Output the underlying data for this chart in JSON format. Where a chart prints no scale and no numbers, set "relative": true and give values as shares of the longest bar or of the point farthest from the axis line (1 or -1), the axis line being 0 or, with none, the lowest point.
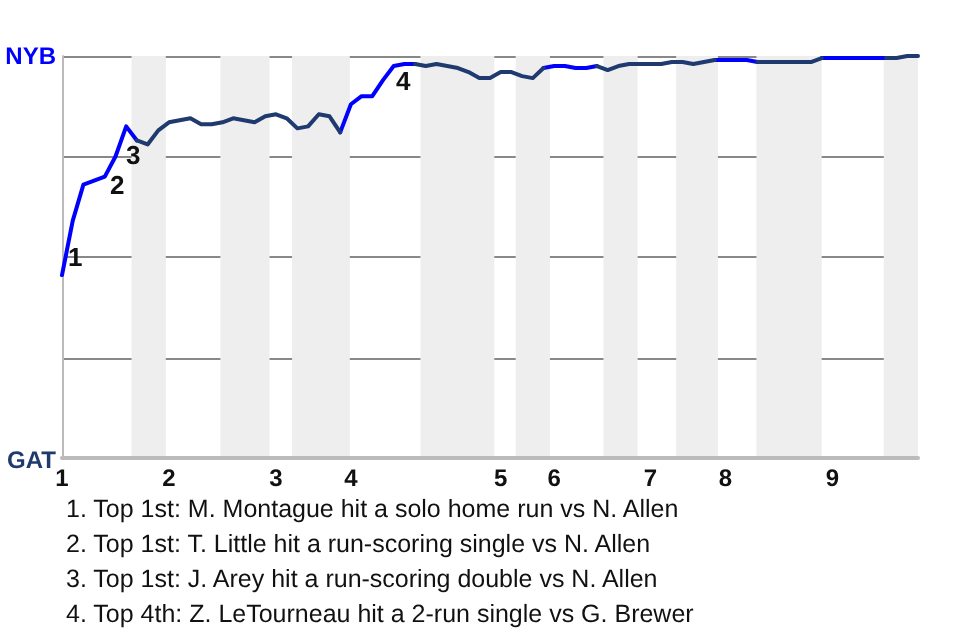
{
  "chart_data": {
    "type": "line",
    "relative": true,
    "categories": [
      "1",
      null,
      null,
      null,
      null,
      null,
      null,
      null,
      null,
      null,
      "2",
      null,
      null,
      null,
      null,
      null,
      null,
      null,
      null,
      null,
      "3",
      null,
      null,
      null,
      null,
      null,
      null,
      "4",
      null,
      null,
      null,
      null,
      null,
      null,
      null,
      null,
      null,
      null,
      null,
      null,
      null,
      "5",
      null,
      null,
      null,
      null,
      "6",
      null,
      null,
      null,
      null,
      null,
      null,
      null,
      null,
      "7",
      null,
      null,
      null,
      null,
      null,
      null,
      "8",
      null,
      null,
      null,
      null,
      null,
      null,
      null,
      null,
      null,
      "9",
      null,
      null,
      null,
      null,
      null,
      null,
      null,
      null
    ],
    "series": [
      {
        "color": "#0000ff",
        "values": [
          0.455,
          0.59,
          0.68,
          0.69,
          0.7,
          0.75,
          0.825,
          0.79,
          null,
          null,
          null,
          null,
          null,
          null,
          null,
          null,
          null,
          null,
          null,
          null,
          null,
          null,
          null,
          null,
          null,
          null,
          0.81,
          0.88,
          0.9,
          0.9,
          0.94,
          0.975,
          0.98,
          0.98,
          null,
          null,
          null,
          null,
          null,
          null,
          null,
          null,
          null,
          null,
          null,
          0.97,
          0.975,
          0.975,
          0.97,
          0.97,
          0.975,
          null,
          null,
          null,
          null,
          null,
          null,
          null,
          null,
          null,
          null,
          0.99,
          0.99,
          0.99,
          0.99,
          0.985,
          null,
          null,
          null,
          null,
          null,
          0.995,
          0.995,
          0.995,
          0.995,
          0.995,
          0.995,
          0.995,
          null,
          null,
          null
        ]
      },
      {
        "color": "#1f3a6e",
        "values": [
          null,
          null,
          null,
          null,
          null,
          null,
          null,
          0.79,
          0.78,
          0.815,
          0.835,
          0.84,
          0.845,
          0.83,
          0.83,
          0.835,
          0.845,
          0.84,
          0.835,
          0.85,
          0.855,
          0.845,
          0.82,
          0.825,
          0.855,
          0.85,
          0.81,
          null,
          null,
          null,
          null,
          null,
          null,
          0.98,
          0.975,
          0.98,
          0.975,
          0.97,
          0.96,
          0.945,
          0.945,
          0.96,
          0.96,
          0.95,
          0.945,
          0.97,
          null,
          null,
          null,
          null,
          0.975,
          0.965,
          0.975,
          0.98,
          0.98,
          0.98,
          0.98,
          0.985,
          0.985,
          0.98,
          0.985,
          0.99,
          null,
          null,
          null,
          0.985,
          0.985,
          0.985,
          0.985,
          0.985,
          0.985,
          0.995,
          null,
          null,
          null,
          null,
          null,
          0.995,
          0.995,
          1,
          1
        ]
      }
    ],
    "grid": "y",
    "marker": "none",
    "line_style": "solid",
    "annotations": [
      "1",
      "2",
      "3",
      "4",
      "NYB",
      "GAT",
      "1. Top 1st: M. Montague hit a solo home run vs N. Allen",
      "2. Top 1st: T. Little hit a run-scoring single vs N. Allen",
      "3. Top 1st: J. Arey hit a run-scoring double vs N. Allen",
      "4. Top 4th: Z. LeTourneau hit a 2-run single vs G. Brewer"
    ]
  }
}
